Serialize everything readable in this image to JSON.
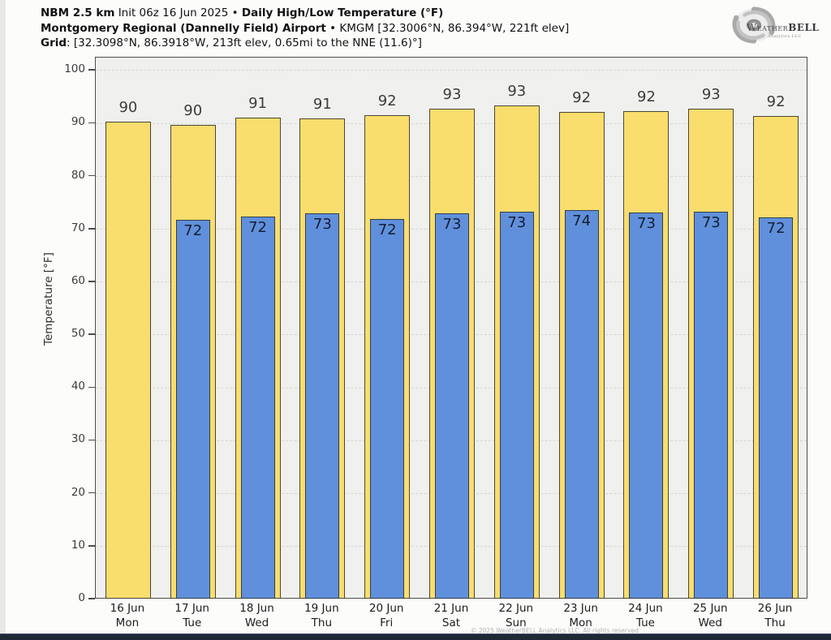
{
  "header": {
    "line1_model": "NBM 2.5 km",
    "line1_init": "Init 06z 16 Jun 2025",
    "line1_sep": "•",
    "line1_product": "Daily High/Low Temperature (°F)",
    "line2_station": "Montgomery Regional (Dannelly Field) Airport",
    "line2_sep": "•",
    "line2_meta": "KMGM [32.3006°N, 86.394°W, 221ft elev]",
    "line3_label": "Grid",
    "line3_meta": ": [32.3098°N, 86.3918°W, 213ft elev, 0.65mi to the NNE (11.6)°]"
  },
  "logo": {
    "brand_weather": "Weather",
    "brand_bell": "BELL",
    "subtext": "Analytics LLC"
  },
  "footer": {
    "copyright": "© 2025 WeatherBELL Analytics LLC. All rights reserved"
  },
  "chart_data": {
    "type": "bar",
    "title": "NBM 2.5 km Daily High/Low Temperature (°F) — KMGM",
    "xlabel": "",
    "ylabel": "Temperature [°F]",
    "ylim": [
      0,
      102.5
    ],
    "yticks": [
      0,
      10,
      20,
      30,
      40,
      50,
      60,
      70,
      80,
      90,
      100
    ],
    "grid": "dashed-horizontal",
    "legend_position": "none",
    "categories": [
      {
        "date": "16 Jun",
        "day": "Mon"
      },
      {
        "date": "17 Jun",
        "day": "Tue"
      },
      {
        "date": "18 Jun",
        "day": "Wed"
      },
      {
        "date": "19 Jun",
        "day": "Thu"
      },
      {
        "date": "20 Jun",
        "day": "Fri"
      },
      {
        "date": "21 Jun",
        "day": "Sat"
      },
      {
        "date": "22 Jun",
        "day": "Sun"
      },
      {
        "date": "23 Jun",
        "day": "Mon"
      },
      {
        "date": "24 Jun",
        "day": "Tue"
      },
      {
        "date": "25 Jun",
        "day": "Wed"
      },
      {
        "date": "26 Jun",
        "day": "Thu"
      }
    ],
    "series": [
      {
        "name": "Daily High",
        "color": "#f9dd6d",
        "values": [
          90.4,
          89.7,
          91.1,
          91.0,
          91.6,
          92.8,
          93.4,
          92.2,
          92.3,
          92.9,
          91.5
        ],
        "labels": [
          "90",
          "90",
          "91",
          "91",
          "92",
          "93",
          "93",
          "92",
          "92",
          "93",
          "92"
        ]
      },
      {
        "name": "Daily Low",
        "color": "#6090db",
        "values": [
          null,
          71.8,
          72.4,
          73.0,
          71.9,
          73.0,
          73.3,
          73.6,
          73.2,
          73.3,
          72.3
        ],
        "labels": [
          null,
          "72",
          "72",
          "73",
          "72",
          "73",
          "73",
          "74",
          "73",
          "73",
          "72"
        ]
      }
    ]
  }
}
